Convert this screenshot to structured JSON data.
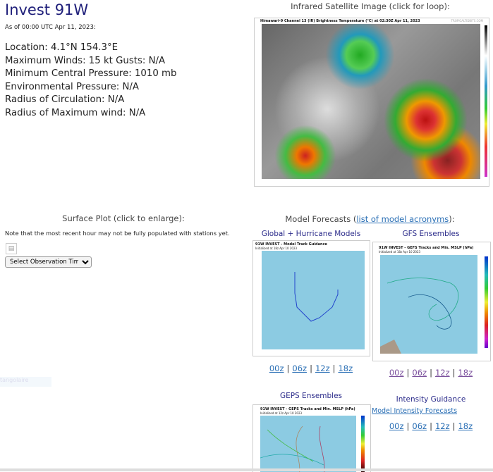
{
  "storm": {
    "title": "Invest 91W",
    "as_of": "As of 00:00 UTC Apr 11, 2023:",
    "details": [
      "Location: 4.1°N 154.3°E",
      "Maximum Winds: 15 kt  Gusts: N/A",
      "Minimum Central Pressure: 1010 mb",
      "Environmental Pressure: N/A",
      "Radius of Circulation: N/A",
      "Radius of Maximum wind: N/A"
    ]
  },
  "satellite": {
    "heading": "Infrared Satellite Image (click for loop):",
    "image_caption": "Himawari-9 Channel 13 (IR) Brightness Temperature (°C) at 02:30Z Apr 11, 2023",
    "credit": "TROPICALTIDBITS.COM"
  },
  "surface": {
    "heading": "Surface Plot (click to enlarge):",
    "note": "Note that the most recent hour may not be fully populated with stations yet.",
    "select_value": "Select Observation Time...",
    "faint_label": "tangolaire"
  },
  "models": {
    "heading_prefix": "Model Forecasts (",
    "heading_link": "list of model acronyms",
    "heading_suffix": "):",
    "global": {
      "title": "Global + Hurricane Models",
      "caption": "91W INVEST - Model Track Guidance",
      "init": "Initialized at 18z Apr 10 2023",
      "links": [
        "00z",
        "06z",
        "12z",
        "18z"
      ]
    },
    "gfs": {
      "title": "GFS Ensembles",
      "caption": "91W INVEST - GEFS Tracks and Min. MSLP (hPa)",
      "init": "Initialized at 18z Apr 10 2023",
      "links": [
        "00z",
        "06z",
        "12z",
        "18z"
      ]
    },
    "geps": {
      "title": "GEPS Ensembles",
      "caption": "91W INVEST - GEPS Tracks and Min. MSLP (hPa)",
      "init": "Initialized at 12z Apr 10 2023"
    },
    "intensity": {
      "title": "Intensity Guidance",
      "link": "Model Intensity Forecasts",
      "links": [
        "00z",
        "06z",
        "12z",
        "18z"
      ]
    }
  },
  "separator": "|"
}
